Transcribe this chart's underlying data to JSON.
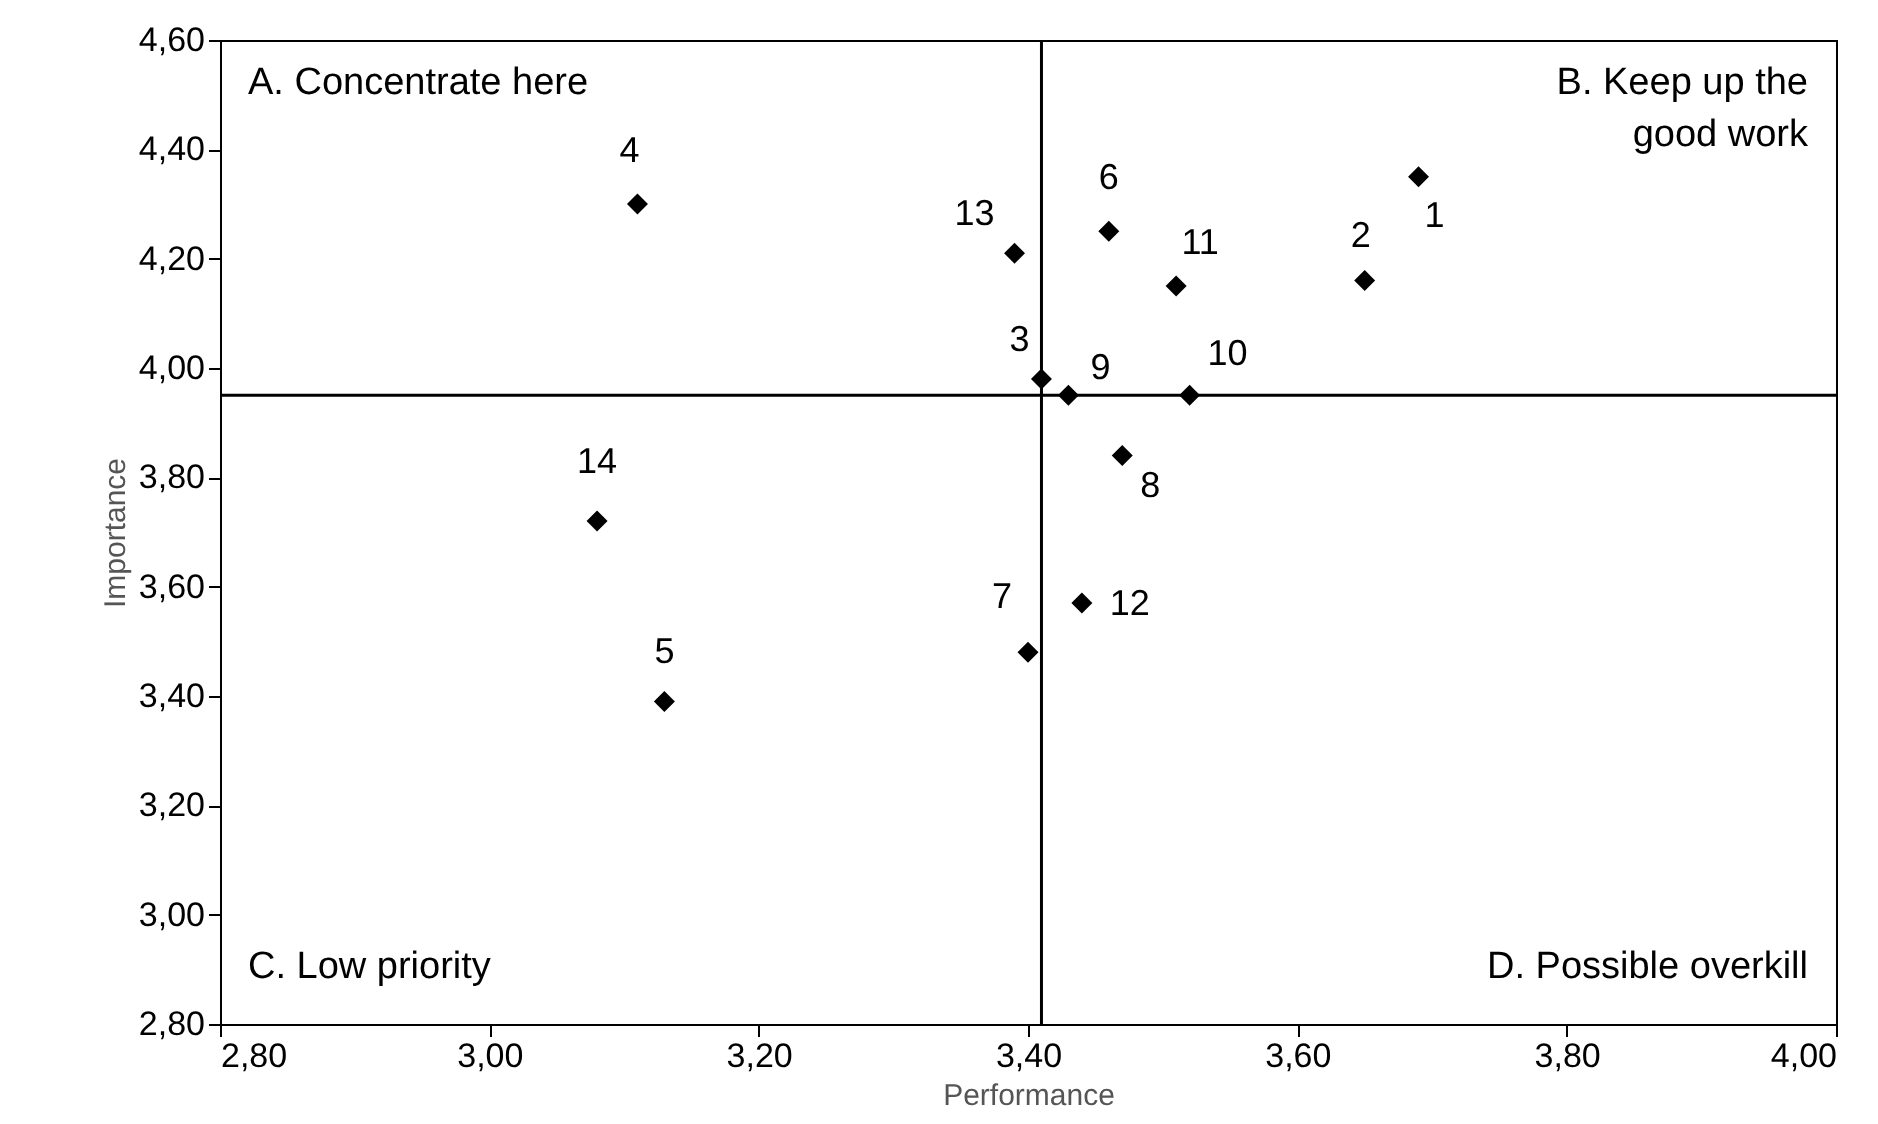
{
  "chart_data": {
    "type": "scatter",
    "xlabel": "Performance",
    "ylabel": "Importance",
    "x": [
      3.69,
      3.65,
      3.41,
      3.11,
      3.13,
      3.46,
      3.4,
      3.47,
      3.43,
      3.52,
      3.51,
      3.44,
      3.39,
      3.08
    ],
    "series": [
      {
        "color": "#000000",
        "values": [
          4.35,
          4.16,
          3.98,
          4.3,
          3.39,
          4.25,
          3.48,
          3.84,
          3.95,
          3.95,
          4.15,
          3.57,
          4.21,
          3.72
        ]
      }
    ],
    "value_labels": [
      "1",
      "2",
      "3",
      "4",
      "5",
      "6",
      "7",
      "8",
      "9",
      "10",
      "11",
      "12",
      "13",
      "14"
    ],
    "marker": "diamond",
    "xlim": [
      2.8,
      4.0
    ],
    "xticks": [
      {
        "value": 2.8,
        "label": "2,80"
      },
      {
        "value": 3.0,
        "label": "3,00"
      },
      {
        "value": 3.2,
        "label": "3,20"
      },
      {
        "value": 3.4,
        "label": "3,40"
      },
      {
        "value": 3.6,
        "label": "3,60"
      },
      {
        "value": 3.8,
        "label": "3,80"
      },
      {
        "value": 4.0,
        "label": "4,00"
      }
    ],
    "ylim": [
      2.8,
      4.6
    ],
    "yticks": [
      {
        "value": 2.8,
        "label": "2,80"
      },
      {
        "value": 3.0,
        "label": "3,00"
      },
      {
        "value": 3.2,
        "label": "3,20"
      },
      {
        "value": 3.4,
        "label": "3,40"
      },
      {
        "value": 3.6,
        "label": "3,60"
      },
      {
        "value": 3.8,
        "label": "3,80"
      },
      {
        "value": 4.0,
        "label": "4,00"
      },
      {
        "value": 4.2,
        "label": "4,20"
      },
      {
        "value": 4.4,
        "label": "4,40"
      },
      {
        "value": 4.6,
        "label": "4,60"
      }
    ],
    "ref_lines": [
      {
        "axis": "x",
        "value": 3.41,
        "color": "#000000"
      },
      {
        "axis": "y",
        "value": 3.95,
        "color": "#000000"
      }
    ],
    "annotations": [
      "A. Concentrate here",
      "B. Keep up the good work",
      "C. Low priority",
      "D. Possible overkill"
    ],
    "grid": false
  }
}
